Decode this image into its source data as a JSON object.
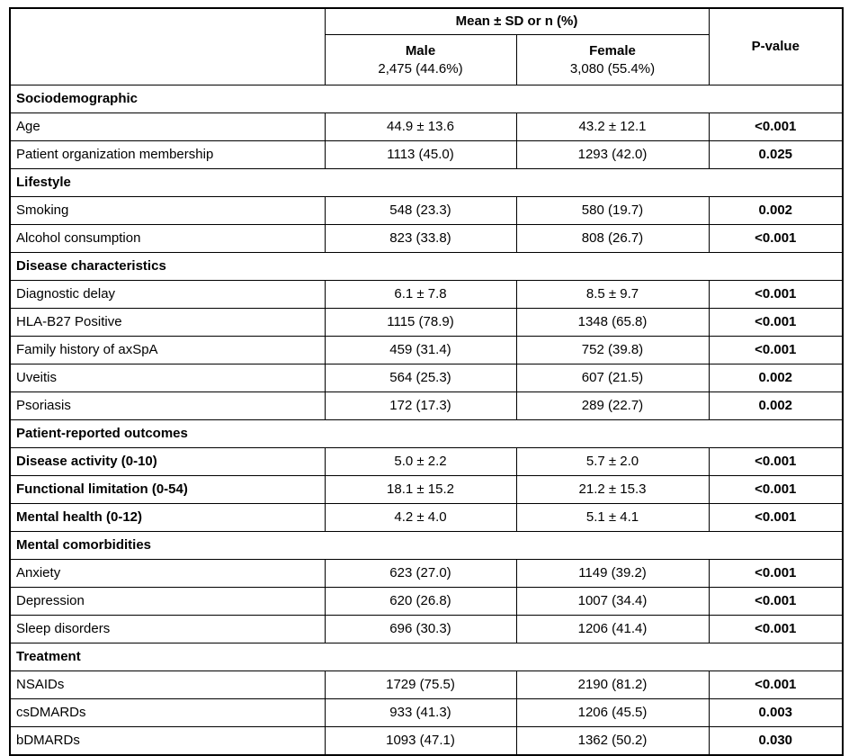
{
  "chart_data": {
    "type": "table",
    "header": {
      "corner_label": "",
      "group_label": "Mean ± SD or n (%)",
      "pvalue_label": "P-value",
      "columns": [
        {
          "label": "Male",
          "sub": "2,475 (44.6%)"
        },
        {
          "label": "Female",
          "sub": "3,080 (55.4%)"
        }
      ]
    },
    "sections": [
      {
        "title": "Sociodemographic",
        "rows": [
          {
            "label": "Age",
            "male": "44.9 ± 13.6",
            "female": "43.2 ± 12.1",
            "p": "<0.001"
          },
          {
            "label": "Patient organization membership",
            "male": "1113 (45.0)",
            "female": "1293 (42.0)",
            "p": "0.025"
          }
        ]
      },
      {
        "title": "Lifestyle",
        "rows": [
          {
            "label": "Smoking",
            "male": "548 (23.3)",
            "female": "580 (19.7)",
            "p": "0.002"
          },
          {
            "label": "Alcohol consumption",
            "male": "823 (33.8)",
            "female": "808 (26.7)",
            "p": "<0.001"
          }
        ]
      },
      {
        "title": "Disease characteristics",
        "rows": [
          {
            "label": "Diagnostic delay",
            "male": "6.1 ± 7.8",
            "female": "8.5 ± 9.7",
            "p": "<0.001"
          },
          {
            "label": "HLA-B27 Positive",
            "male": "1115 (78.9)",
            "female": "1348 (65.8)",
            "p": "<0.001"
          },
          {
            "label": "Family history of axSpA",
            "male": "459 (31.4)",
            "female": "752 (39.8)",
            "p": "<0.001"
          },
          {
            "label": "Uveitis",
            "male": "564 (25.3)",
            "female": "607 (21.5)",
            "p": "0.002"
          },
          {
            "label": "Psoriasis",
            "male": "172 (17.3)",
            "female": "289 (22.7)",
            "p": "0.002"
          }
        ]
      },
      {
        "title": "Patient-reported outcomes",
        "rows": [
          {
            "label": "Disease activity (0-10)",
            "male": "5.0 ± 2.2",
            "female": "5.7 ± 2.0",
            "p": "<0.001",
            "bold_label": true
          },
          {
            "label": "Functional limitation (0-54)",
            "male": "18.1 ± 15.2",
            "female": "21.2 ± 15.3",
            "p": "<0.001",
            "bold_label": true
          },
          {
            "label": "Mental health (0-12)",
            "male": "4.2 ± 4.0",
            "female": "5.1 ± 4.1",
            "p": "<0.001",
            "bold_label": true
          }
        ]
      },
      {
        "title": "Mental comorbidities",
        "rows": [
          {
            "label": "Anxiety",
            "male": "623 (27.0)",
            "female": "1149 (39.2)",
            "p": "<0.001"
          },
          {
            "label": "Depression",
            "male": "620 (26.8)",
            "female": "1007 (34.4)",
            "p": "<0.001"
          },
          {
            "label": "Sleep disorders",
            "male": "696 (30.3)",
            "female": "1206 (41.4)",
            "p": "<0.001"
          }
        ]
      },
      {
        "title": "Treatment",
        "rows": [
          {
            "label": "NSAIDs",
            "male": "1729 (75.5)",
            "female": "2190 (81.2)",
            "p": "<0.001"
          },
          {
            "label": "csDMARDs",
            "male": "933 (41.3)",
            "female": "1206 (45.5)",
            "p": "0.003"
          },
          {
            "label": "bDMARDs",
            "male": "1093 (47.1)",
            "female": "1362 (50.2)",
            "p": "0.030"
          }
        ]
      }
    ]
  }
}
